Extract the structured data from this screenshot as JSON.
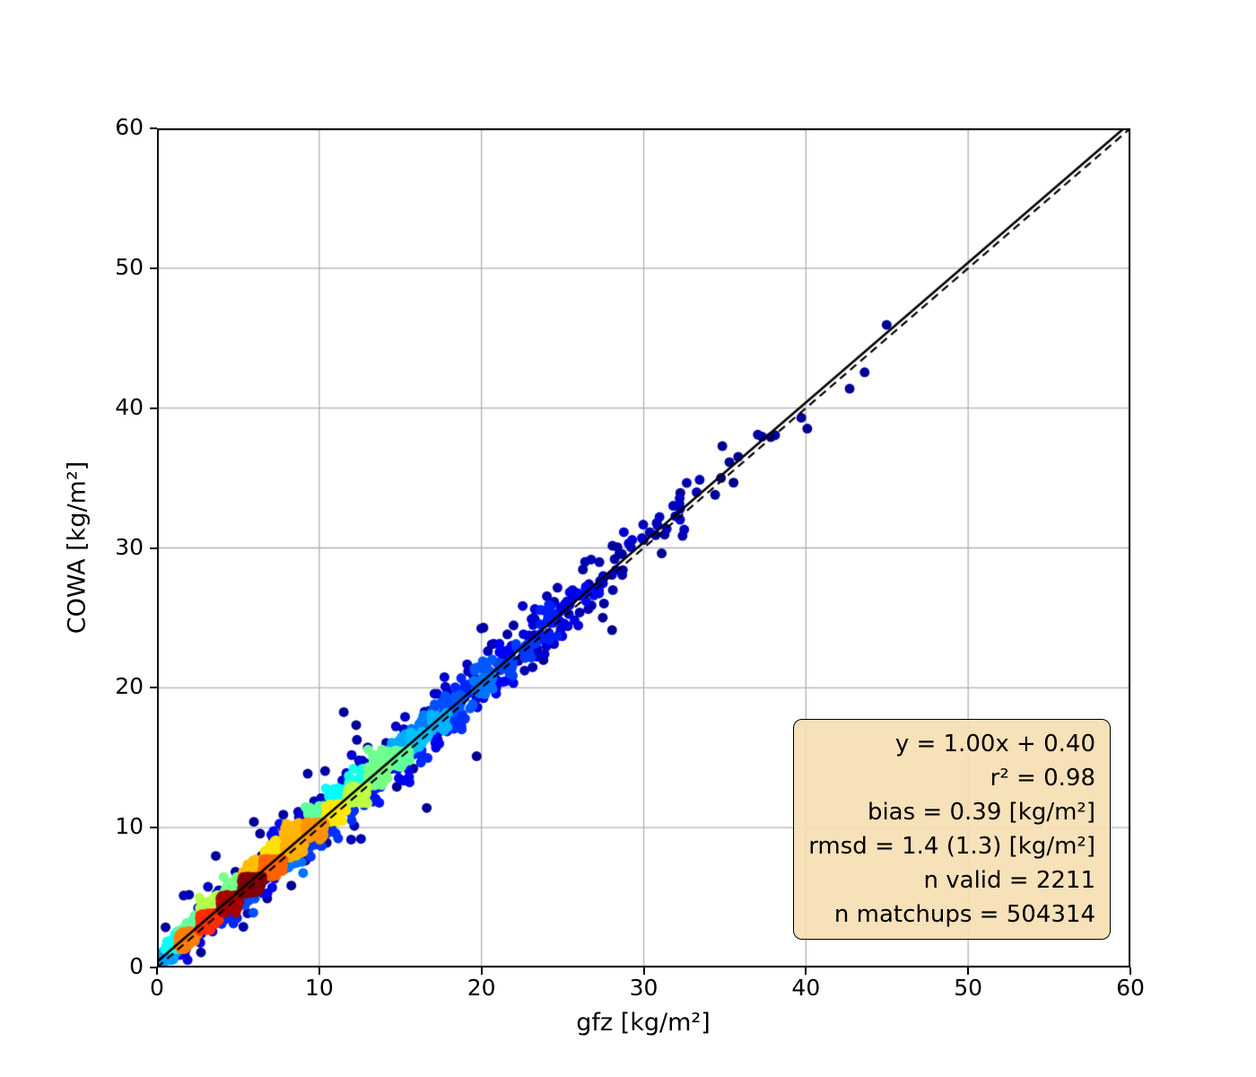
{
  "figure": {
    "background": "#ffffff"
  },
  "chart_data": {
    "type": "scatter",
    "title": "",
    "xlabel": "gfz [kg/m²]",
    "ylabel": "COWA [kg/m²]",
    "xlim": [
      0,
      60
    ],
    "ylim": [
      0,
      60
    ],
    "xticks": [
      0,
      10,
      20,
      30,
      40,
      50,
      60
    ],
    "yticks": [
      0,
      10,
      20,
      30,
      40,
      50,
      60
    ],
    "grid": true,
    "grid_color": "#b0b0b0",
    "spine_color": "#000000",
    "colormap": "jet",
    "marker_size_px": 11,
    "n_points": 2211,
    "lines": [
      {
        "name": "one-to-one-line",
        "style": "dashed",
        "color": "#000000",
        "slope": 1.0,
        "intercept": 0.0
      },
      {
        "name": "fit-line",
        "style": "solid",
        "color": "#000000",
        "slope": 1.0,
        "intercept": 0.4
      }
    ],
    "scatter_generator": {
      "seed": 42,
      "x_gamma_shape": 2,
      "x_gamma_scale": 5.2,
      "x_min": 0.3,
      "x_max": 47.5,
      "noise_sigma_base": 0.45,
      "noise_sigma_slope": 0.025,
      "outlier_fraction": 0.05,
      "outlier_sigma_mult": 3.0,
      "bias": 0.4,
      "density_bin": 1.3,
      "density_gamma": 0.8
    },
    "stats_box": {
      "facecolor": "#f5deb3",
      "edgecolor": "#000000",
      "lines": [
        "y = 1.00x + 0.40",
        "r² = 0.98",
        "bias = 0.39 [kg/m²]",
        "rmsd = 1.4 (1.3) [kg/m²]",
        "n valid = 2211",
        "n matchups = 504314"
      ]
    }
  }
}
